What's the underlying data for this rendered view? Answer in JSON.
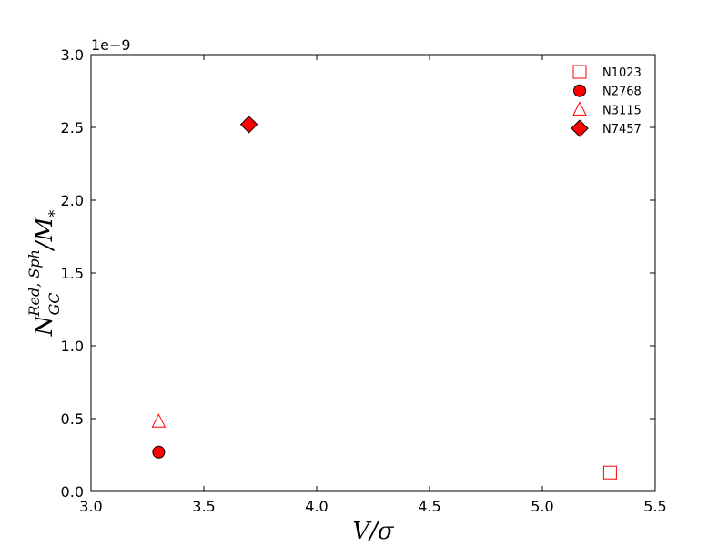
{
  "chart_data": {
    "type": "scatter",
    "xlabel": "V/σ",
    "ylabel_main": "N",
    "ylabel_sub": "GC",
    "ylabel_sup": "Red, Sph",
    "ylabel_rest": "/M",
    "ylabel_star": "*",
    "y_offset_label": "1e−9",
    "xlim": [
      3.0,
      5.5
    ],
    "ylim": [
      0.0,
      3.0
    ],
    "xticks": [
      "3.0",
      "3.5",
      "4.0",
      "4.5",
      "5.0",
      "5.5"
    ],
    "yticks": [
      "0.0",
      "0.5",
      "1.0",
      "1.5",
      "2.0",
      "2.5",
      "3.0"
    ],
    "legend_position": "top-right",
    "series": [
      {
        "name": "N1023",
        "marker": "square-open",
        "color": "#ff0000",
        "points": [
          {
            "x": 5.3,
            "y": 0.13
          }
        ]
      },
      {
        "name": "N2768",
        "marker": "circle-filled",
        "color": "#ff0000",
        "points": [
          {
            "x": 3.3,
            "y": 0.27
          }
        ]
      },
      {
        "name": "N3115",
        "marker": "triangle-open",
        "color": "#ff0000",
        "points": [
          {
            "x": 3.3,
            "y": 0.48
          }
        ]
      },
      {
        "name": "N7457",
        "marker": "diamond-filled",
        "color": "#ff0000",
        "points": [
          {
            "x": 3.7,
            "y": 2.52
          }
        ]
      }
    ]
  }
}
